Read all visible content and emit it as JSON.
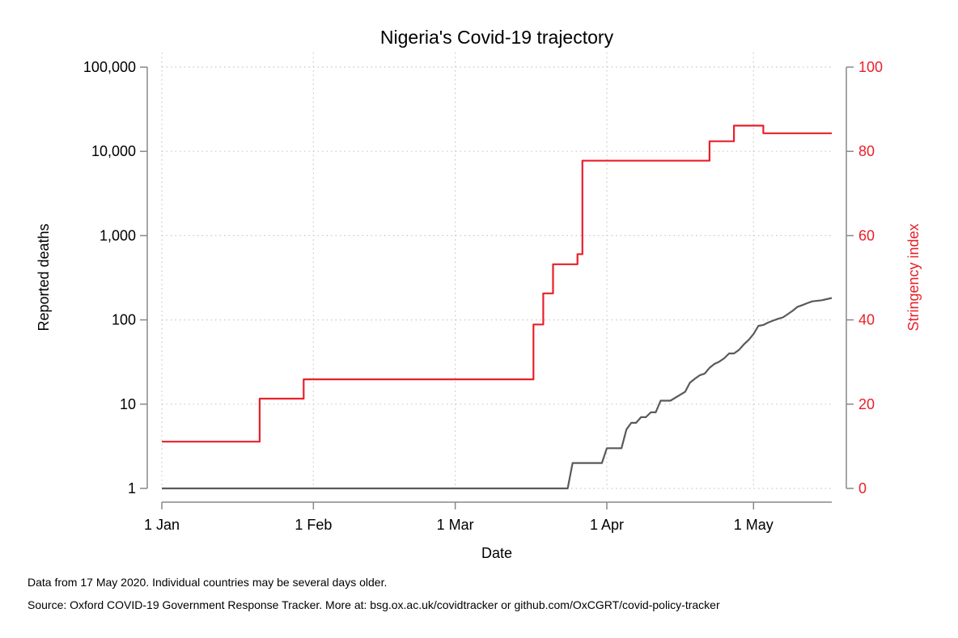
{
  "chart_data": {
    "type": "line",
    "title": "Nigeria's Covid-19 trajectory",
    "xlabel": "Date",
    "ylabel": "Reported deaths",
    "y2label": "Stringency index",
    "x_range": [
      "2020-01-01",
      "2020-05-17"
    ],
    "x_ticks": [
      {
        "date": "2020-01-01",
        "label": "1 Jan"
      },
      {
        "date": "2020-02-01",
        "label": "1 Feb"
      },
      {
        "date": "2020-03-01",
        "label": "1 Mar"
      },
      {
        "date": "2020-04-01",
        "label": "1 Apr"
      },
      {
        "date": "2020-05-01",
        "label": "1 May"
      }
    ],
    "y_scale": "log",
    "ylim": [
      1,
      100000
    ],
    "y_ticks": [
      {
        "value": 1,
        "label": "1"
      },
      {
        "value": 10,
        "label": "10"
      },
      {
        "value": 100,
        "label": "100"
      },
      {
        "value": 1000,
        "label": "1,000"
      },
      {
        "value": 10000,
        "label": "10,000"
      },
      {
        "value": 100000,
        "label": "100,000"
      }
    ],
    "y2lim": [
      0,
      100
    ],
    "y2_ticks": [
      {
        "value": 0,
        "label": "0"
      },
      {
        "value": 20,
        "label": "20"
      },
      {
        "value": 40,
        "label": "40"
      },
      {
        "value": 60,
        "label": "60"
      },
      {
        "value": 80,
        "label": "80"
      },
      {
        "value": 100,
        "label": "100"
      }
    ],
    "grid": true,
    "series": [
      {
        "axis": "left",
        "color": "#5a5a5a",
        "points": [
          [
            "2020-01-01",
            1
          ],
          [
            "2020-03-24",
            1
          ],
          [
            "2020-03-25",
            2
          ],
          [
            "2020-03-31",
            2
          ],
          [
            "2020-04-01",
            3
          ],
          [
            "2020-04-04",
            3
          ],
          [
            "2020-04-05",
            5
          ],
          [
            "2020-04-06",
            6
          ],
          [
            "2020-04-07",
            6
          ],
          [
            "2020-04-08",
            7
          ],
          [
            "2020-04-09",
            7
          ],
          [
            "2020-04-10",
            8
          ],
          [
            "2020-04-11",
            8
          ],
          [
            "2020-04-12",
            11
          ],
          [
            "2020-04-14",
            11
          ],
          [
            "2020-04-17",
            14
          ],
          [
            "2020-04-18",
            18
          ],
          [
            "2020-04-19",
            20
          ],
          [
            "2020-04-20",
            22
          ],
          [
            "2020-04-21",
            23
          ],
          [
            "2020-04-22",
            27
          ],
          [
            "2020-04-23",
            30
          ],
          [
            "2020-04-24",
            32
          ],
          [
            "2020-04-25",
            35
          ],
          [
            "2020-04-26",
            40
          ],
          [
            "2020-04-27",
            40
          ],
          [
            "2020-04-28",
            44
          ],
          [
            "2020-04-29",
            51
          ],
          [
            "2020-04-30",
            58
          ],
          [
            "2020-05-01",
            68
          ],
          [
            "2020-05-02",
            85
          ],
          [
            "2020-05-03",
            87
          ],
          [
            "2020-05-04",
            93
          ],
          [
            "2020-05-05",
            98
          ],
          [
            "2020-05-06",
            103
          ],
          [
            "2020-05-07",
            107
          ],
          [
            "2020-05-08",
            117
          ],
          [
            "2020-05-09",
            128
          ],
          [
            "2020-05-10",
            143
          ],
          [
            "2020-05-11",
            150
          ],
          [
            "2020-05-12",
            158
          ],
          [
            "2020-05-13",
            166
          ],
          [
            "2020-05-15",
            171
          ],
          [
            "2020-05-17",
            182
          ]
        ]
      },
      {
        "axis": "right",
        "color": "#e8202a",
        "step": true,
        "points": [
          [
            "2020-01-01",
            11.1
          ],
          [
            "2020-01-21",
            21.3
          ],
          [
            "2020-01-30",
            25.9
          ],
          [
            "2020-03-17",
            38.9
          ],
          [
            "2020-03-18",
            38.9
          ],
          [
            "2020-03-19",
            46.3
          ],
          [
            "2020-03-21",
            53.2
          ],
          [
            "2020-03-26",
            55.6
          ],
          [
            "2020-03-27",
            77.8
          ],
          [
            "2020-04-22",
            82.4
          ],
          [
            "2020-04-27",
            86.1
          ],
          [
            "2020-05-03",
            84.3
          ],
          [
            "2020-05-17",
            84.3
          ]
        ]
      }
    ]
  },
  "notes": {
    "line1": "Data from 17 May 2020. Individual countries may be several days older.",
    "line2": "Source: Oxford COVID-19 Government Response Tracker. More at: bsg.ox.ac.uk/covidtracker or github.com/OxCGRT/covid-policy-tracker"
  }
}
